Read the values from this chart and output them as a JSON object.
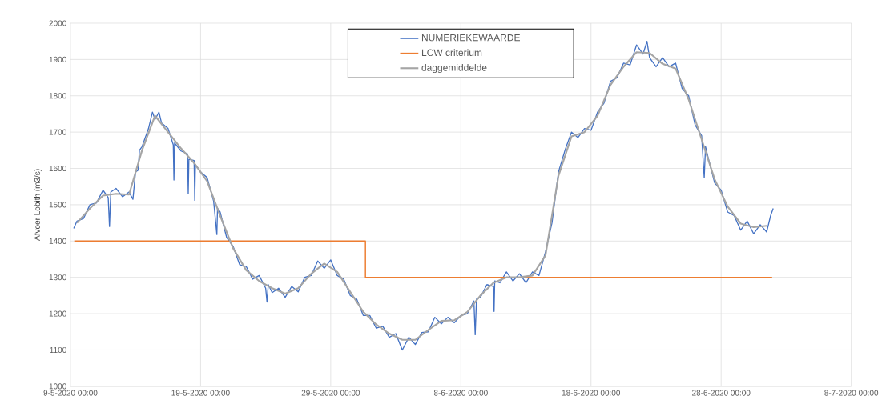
{
  "chart_data": {
    "type": "line",
    "ylabel": "Afvoer Lobith (m3/s)",
    "xlim": [
      "2020-05-09T00:00",
      "2020-07-08T00:00"
    ],
    "xticks": [
      {
        "value": "2020-05-09T00:00",
        "label": "9-5-2020 00:00"
      },
      {
        "value": "2020-05-19T00:00",
        "label": "19-5-2020 00:00"
      },
      {
        "value": "2020-05-29T00:00",
        "label": "29-5-2020 00:00"
      },
      {
        "value": "2020-06-08T00:00",
        "label": "8-6-2020 00:00"
      },
      {
        "value": "2020-06-18T00:00",
        "label": "18-6-2020 00:00"
      },
      {
        "value": "2020-06-28T00:00",
        "label": "28-6-2020 00:00"
      },
      {
        "value": "2020-07-08T00:00",
        "label": "8-7-2020 00:00"
      }
    ],
    "ylim": [
      1000,
      2000
    ],
    "yticks": [
      1000,
      1100,
      1200,
      1300,
      1400,
      1500,
      1600,
      1700,
      1800,
      1900,
      2000
    ],
    "grid": true,
    "legend": "top",
    "series": [
      {
        "name": "NUMERIEKEWAARDE",
        "color": "#4472c4",
        "x": [
          "2020-05-09T06:00",
          "2020-05-09T12:00",
          "2020-05-10T00:00",
          "2020-05-10T12:00",
          "2020-05-11T00:00",
          "2020-05-11T12:00",
          "2020-05-11T21:36",
          "2020-05-12T00:00",
          "2020-05-12T02:24",
          "2020-05-12T12:00",
          "2020-05-13T00:00",
          "2020-05-13T12:00",
          "2020-05-13T19:12",
          "2020-05-14T00:00",
          "2020-05-14T04:48",
          "2020-05-14T07:12",
          "2020-05-14T12:00",
          "2020-05-15T00:00",
          "2020-05-15T07:12",
          "2020-05-15T12:00",
          "2020-05-15T19:12",
          "2020-05-16T00:00",
          "2020-05-16T12:00",
          "2020-05-16T21:36",
          "2020-05-16T22:48",
          "2020-05-17T00:00",
          "2020-05-17T12:00",
          "2020-05-18T00:00",
          "2020-05-18T01:12",
          "2020-05-18T02:24",
          "2020-05-18T12:00",
          "2020-05-18T13:12",
          "2020-05-18T14:24",
          "2020-05-19T00:00",
          "2020-05-19T12:00",
          "2020-05-20T00:00",
          "2020-05-20T06:00",
          "2020-05-20T07:12",
          "2020-05-20T12:00",
          "2020-05-21T00:00",
          "2020-05-21T12:00",
          "2020-05-22T00:00",
          "2020-05-22T12:00",
          "2020-05-23T00:00",
          "2020-05-23T12:00",
          "2020-05-24T00:00",
          "2020-05-24T02:24",
          "2020-05-24T04:48",
          "2020-05-24T12:00",
          "2020-05-25T00:00",
          "2020-05-25T12:00",
          "2020-05-26T00:00",
          "2020-05-26T12:00",
          "2020-05-27T00:00",
          "2020-05-27T12:00",
          "2020-05-28T00:00",
          "2020-05-28T12:00",
          "2020-05-29T00:00",
          "2020-05-29T12:00",
          "2020-05-30T00:00",
          "2020-05-30T12:00",
          "2020-05-31T00:00",
          "2020-05-31T12:00",
          "2020-06-01T00:00",
          "2020-06-01T12:00",
          "2020-06-02T00:00",
          "2020-06-02T12:00",
          "2020-06-03T00:00",
          "2020-06-03T12:00",
          "2020-06-04T00:00",
          "2020-06-04T12:00",
          "2020-06-05T00:00",
          "2020-06-05T12:00",
          "2020-06-06T00:00",
          "2020-06-06T12:00",
          "2020-06-07T00:00",
          "2020-06-07T12:00",
          "2020-06-08T00:00",
          "2020-06-08T12:00",
          "2020-06-09T00:00",
          "2020-06-09T02:24",
          "2020-06-09T04:48",
          "2020-06-09T12:00",
          "2020-06-10T00:00",
          "2020-06-10T12:00",
          "2020-06-10T13:12",
          "2020-06-10T14:24",
          "2020-06-11T00:00",
          "2020-06-11T12:00",
          "2020-06-12T00:00",
          "2020-06-12T12:00",
          "2020-06-13T00:00",
          "2020-06-13T12:00",
          "2020-06-14T00:00",
          "2020-06-14T12:00",
          "2020-06-15T00:00",
          "2020-06-15T12:00",
          "2020-06-16T00:00",
          "2020-06-16T12:00",
          "2020-06-17T00:00",
          "2020-06-17T12:00",
          "2020-06-18T00:00",
          "2020-06-18T12:00",
          "2020-06-19T00:00",
          "2020-06-19T12:00",
          "2020-06-20T00:00",
          "2020-06-20T12:00",
          "2020-06-21T00:00",
          "2020-06-21T12:00",
          "2020-06-22T00:00",
          "2020-06-22T07:12",
          "2020-06-22T12:00",
          "2020-06-23T00:00",
          "2020-06-23T12:00",
          "2020-06-24T00:00",
          "2020-06-24T12:00",
          "2020-06-25T00:00",
          "2020-06-25T12:00",
          "2020-06-26T00:00",
          "2020-06-26T12:00",
          "2020-06-26T16:48",
          "2020-06-26T19:12",
          "2020-06-27T00:00",
          "2020-06-27T12:00",
          "2020-06-28T00:00",
          "2020-06-28T12:00",
          "2020-06-29T00:00",
          "2020-06-29T12:00",
          "2020-06-30T00:00",
          "2020-06-30T12:00",
          "2020-07-01T00:00",
          "2020-07-01T12:00",
          "2020-07-01T19:12",
          "2020-07-02T00:00"
        ],
        "values": [
          1435,
          1455,
          1462,
          1500,
          1505,
          1540,
          1520,
          1440,
          1535,
          1545,
          1522,
          1535,
          1515,
          1590,
          1595,
          1650,
          1660,
          1710,
          1755,
          1735,
          1755,
          1725,
          1710,
          1665,
          1568,
          1670,
          1648,
          1640,
          1530,
          1625,
          1622,
          1512,
          1610,
          1590,
          1575,
          1510,
          1418,
          1490,
          1480,
          1410,
          1385,
          1335,
          1330,
          1295,
          1305,
          1270,
          1232,
          1280,
          1258,
          1270,
          1245,
          1275,
          1260,
          1300,
          1305,
          1345,
          1325,
          1348,
          1305,
          1295,
          1250,
          1240,
          1195,
          1195,
          1160,
          1165,
          1135,
          1145,
          1100,
          1135,
          1115,
          1148,
          1150,
          1190,
          1172,
          1190,
          1175,
          1195,
          1200,
          1235,
          1142,
          1240,
          1245,
          1280,
          1275,
          1206,
          1290,
          1285,
          1315,
          1290,
          1310,
          1285,
          1315,
          1305,
          1370,
          1450,
          1590,
          1650,
          1700,
          1685,
          1710,
          1705,
          1755,
          1780,
          1840,
          1850,
          1890,
          1885,
          1940,
          1915,
          1950,
          1905,
          1880,
          1905,
          1880,
          1890,
          1820,
          1800,
          1720,
          1690,
          1574,
          1660,
          1630,
          1560,
          1540,
          1480,
          1470,
          1430,
          1455,
          1420,
          1445,
          1425,
          1470,
          1490
        ]
      },
      {
        "name": "LCW criterium",
        "type": "step",
        "color": "#ed7d31",
        "x": [
          "2020-05-09T07:00",
          "2020-05-31T16:00",
          "2020-07-01T22:00"
        ],
        "values": [
          1400,
          1300,
          1300
        ]
      },
      {
        "name": "daggemiddelde",
        "color": "#a5a5a5",
        "x": [
          "2020-05-09T12:00",
          "2020-05-10T12:00",
          "2020-05-11T12:00",
          "2020-05-12T12:00",
          "2020-05-13T12:00",
          "2020-05-14T12:00",
          "2020-05-15T12:00",
          "2020-05-16T12:00",
          "2020-05-17T12:00",
          "2020-05-18T12:00",
          "2020-05-19T12:00",
          "2020-05-20T12:00",
          "2020-05-21T12:00",
          "2020-05-22T12:00",
          "2020-05-23T12:00",
          "2020-05-24T12:00",
          "2020-05-25T12:00",
          "2020-05-26T12:00",
          "2020-05-27T12:00",
          "2020-05-28T12:00",
          "2020-05-29T12:00",
          "2020-05-30T12:00",
          "2020-05-31T12:00",
          "2020-06-01T12:00",
          "2020-06-02T12:00",
          "2020-06-03T12:00",
          "2020-06-04T12:00",
          "2020-06-05T12:00",
          "2020-06-06T12:00",
          "2020-06-07T12:00",
          "2020-06-08T12:00",
          "2020-06-09T12:00",
          "2020-06-10T12:00",
          "2020-06-11T12:00",
          "2020-06-12T12:00",
          "2020-06-13T12:00",
          "2020-06-14T12:00",
          "2020-06-15T12:00",
          "2020-06-16T12:00",
          "2020-06-17T12:00",
          "2020-06-18T12:00",
          "2020-06-19T12:00",
          "2020-06-20T12:00",
          "2020-06-21T12:00",
          "2020-06-22T12:00",
          "2020-06-23T12:00",
          "2020-06-24T12:00",
          "2020-06-25T12:00",
          "2020-06-26T12:00",
          "2020-06-27T12:00",
          "2020-06-28T12:00",
          "2020-06-29T12:00",
          "2020-06-30T12:00",
          "2020-07-01T12:00"
        ],
        "values": [
          1450,
          1490,
          1525,
          1530,
          1528,
          1650,
          1745,
          1700,
          1655,
          1615,
          1565,
          1470,
          1380,
          1320,
          1290,
          1270,
          1255,
          1270,
          1310,
          1338,
          1315,
          1260,
          1205,
          1170,
          1145,
          1128,
          1128,
          1155,
          1180,
          1182,
          1205,
          1250,
          1285,
          1300,
          1300,
          1305,
          1360,
          1580,
          1688,
          1700,
          1745,
          1830,
          1880,
          1920,
          1918,
          1888,
          1875,
          1790,
          1680,
          1570,
          1495,
          1448,
          1438,
          1442
        ]
      }
    ]
  }
}
